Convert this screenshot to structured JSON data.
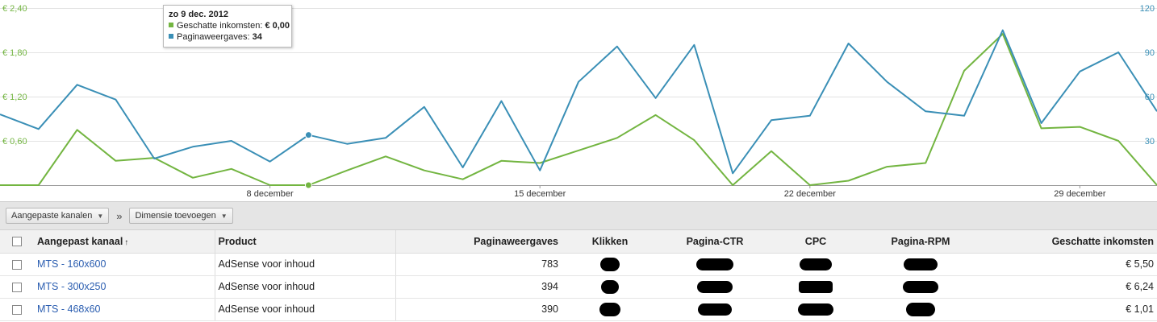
{
  "chart_data": {
    "type": "line",
    "y_left": {
      "ticks": [
        "€ 2,40",
        "€ 1,80",
        "€ 1,20",
        "€ 0,60"
      ],
      "values": [
        2.4,
        1.8,
        1.2,
        0.6
      ],
      "range": [
        0,
        2.4
      ],
      "color": "#73b541"
    },
    "y_right": {
      "ticks": [
        "120",
        "90",
        "60",
        "30"
      ],
      "values": [
        120,
        90,
        60,
        30
      ],
      "range": [
        0,
        120
      ],
      "color": "#3a8fb6"
    },
    "x_labels": [
      {
        "label": "8 december",
        "index": 8
      },
      {
        "label": "15 december",
        "index": 15
      },
      {
        "label": "22 december",
        "index": 22
      },
      {
        "label": "29 december",
        "index": 29
      }
    ],
    "grid": true,
    "series": [
      {
        "name": "Geschatte inkomsten",
        "axis": "left",
        "color": "#73b541",
        "values": [
          0,
          0,
          0.75,
          0.33,
          0.37,
          0.1,
          0.22,
          0,
          0,
          0.2,
          0.39,
          0.2,
          0.08,
          0.33,
          0.3,
          0.47,
          0.64,
          0.95,
          0.61,
          0,
          0.46,
          0,
          0.06,
          0.25,
          0.3,
          1.55,
          2.05,
          0.77,
          0.79,
          0.6,
          0
        ]
      },
      {
        "name": "Paginaweergaves",
        "axis": "right",
        "color": "#3a8fb6",
        "values": [
          48,
          38,
          68,
          58,
          18,
          26,
          30,
          16,
          34,
          28,
          32,
          53,
          12,
          57,
          10,
          70,
          94,
          59,
          95,
          8,
          44,
          47,
          96,
          70,
          50,
          47,
          105,
          42,
          77,
          90,
          50
        ]
      }
    ],
    "highlight_index": 8
  },
  "tooltip": {
    "title": "zo 9 dec. 2012",
    "rows": [
      {
        "label": "Geschatte inkomsten:",
        "value": "€ 0,00",
        "color": "#73b541"
      },
      {
        "label": "Paginaweergaves:",
        "value": "34",
        "color": "#3a8fb6"
      }
    ]
  },
  "toolbar": {
    "channels_label": "Aangepaste kanalen",
    "separator": "»",
    "dimension_label": "Dimensie toevoegen"
  },
  "table": {
    "headers": {
      "channel": "Aangepast kanaal",
      "product": "Product",
      "pageviews": "Paginaweergaves",
      "clicks": "Klikken",
      "ctr": "Pagina-CTR",
      "cpc": "CPC",
      "rpm": "Pagina-RPM",
      "earnings": "Geschatte inkomsten"
    },
    "rows": [
      {
        "channel": "MTS - 160x600",
        "product": "AdSense voor inhoud",
        "pageviews": "783",
        "earnings": "€ 5,50"
      },
      {
        "channel": "MTS - 300x250",
        "product": "AdSense voor inhoud",
        "pageviews": "394",
        "earnings": "€ 6,24"
      },
      {
        "channel": "MTS - 468x60",
        "product": "AdSense voor inhoud",
        "pageviews": "390",
        "earnings": "€ 1,01"
      }
    ]
  }
}
